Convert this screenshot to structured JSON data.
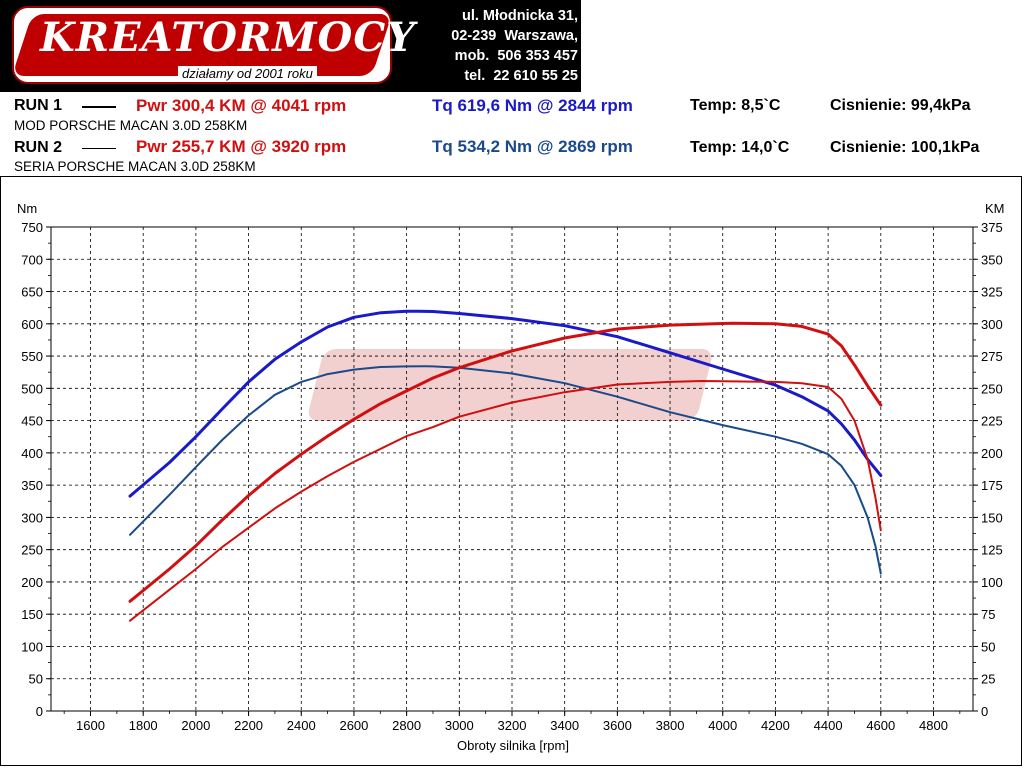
{
  "header": {
    "logo_text": "KREATORMOCY",
    "logo_tagline": "działamy od 2001 roku",
    "address": [
      "ul. Młodnicka 31,",
      "02-239  Warszawa,",
      "mob.  506 353 457",
      "tel.  22 610 55 25"
    ]
  },
  "runs": [
    {
      "label": "RUN 1",
      "pwr": "Pwr  300,4 KM @ 4041 rpm",
      "tq": "Tq 619,6 Nm @ 2844 rpm",
      "temp": "Temp: 8,5`C",
      "pressure": "Cisnienie: 99,4kPa",
      "desc": "MOD PORSCHE MACAN 3.0D 258KM",
      "pwr_color": "#d01010",
      "tq_color": "#1a1ac8"
    },
    {
      "label": "RUN 2",
      "pwr": "Pwr  255,7 KM @ 3920 rpm",
      "tq": "Tq 534,2 Nm @ 2869 rpm",
      "temp": "Temp: 14,0`C",
      "pressure": "Cisnienie: 100,1kPa",
      "desc": "SERIA PORSCHE MACAN 3.0D 258KM",
      "pwr_color": "#d01010",
      "tq_color": "#1a4a8a"
    }
  ],
  "chart_data": {
    "type": "line",
    "xlabel": "Obroty silnika [rpm]",
    "ylabel_left": "Nm",
    "ylabel_right": "KM",
    "xlim": [
      1450,
      4950
    ],
    "xticks": [
      1600,
      1800,
      2000,
      2200,
      2400,
      2600,
      2800,
      3000,
      3200,
      3400,
      3600,
      3800,
      4000,
      4200,
      4400,
      4600,
      4800
    ],
    "ylim_left": [
      0,
      750
    ],
    "yticks_left": [
      0,
      50,
      100,
      150,
      200,
      250,
      300,
      350,
      400,
      450,
      500,
      550,
      600,
      650,
      700,
      750
    ],
    "ylim_right": [
      0,
      375
    ],
    "yticks_right": [
      0,
      25,
      50,
      75,
      100,
      125,
      150,
      175,
      200,
      225,
      250,
      275,
      300,
      325,
      350,
      375
    ],
    "grid": true,
    "series": [
      {
        "axis": "left",
        "color": "#1a1ac8",
        "width": 3,
        "x": [
          1750,
          1900,
          2000,
          2100,
          2200,
          2300,
          2400,
          2500,
          2600,
          2700,
          2800,
          2844,
          2900,
          3000,
          3200,
          3400,
          3600,
          3800,
          4000,
          4200,
          4300,
          4400,
          4450,
          4500,
          4550,
          4600
        ],
        "y": [
          333,
          385,
          425,
          468,
          510,
          545,
          572,
          595,
          610,
          617,
          619.6,
          619.6,
          619,
          616,
          608,
          597,
          580,
          555,
          530,
          505,
          487,
          465,
          445,
          420,
          390,
          365
        ]
      },
      {
        "axis": "left",
        "color": "#1a4a8a",
        "width": 2,
        "x": [
          1750,
          1900,
          2000,
          2100,
          2200,
          2300,
          2400,
          2500,
          2600,
          2700,
          2800,
          2869,
          2900,
          3000,
          3200,
          3400,
          3600,
          3800,
          4000,
          4200,
          4300,
          4400,
          4450,
          4500,
          4550,
          4580,
          4600
        ],
        "y": [
          273,
          335,
          378,
          420,
          458,
          490,
          510,
          522,
          529,
          533,
          534,
          534.2,
          534,
          532,
          523,
          508,
          487,
          463,
          443,
          425,
          414,
          398,
          380,
          350,
          300,
          255,
          213
        ]
      },
      {
        "axis": "right",
        "color": "#d01010",
        "width": 3,
        "x": [
          1750,
          1900,
          2000,
          2100,
          2200,
          2300,
          2400,
          2500,
          2600,
          2700,
          2800,
          2900,
          3000,
          3200,
          3400,
          3600,
          3800,
          4000,
          4041,
          4200,
          4300,
          4400,
          4450,
          4500,
          4550,
          4600
        ],
        "y": [
          85,
          110,
          128,
          148,
          167,
          184,
          199,
          213,
          226,
          238,
          248,
          258,
          266,
          279,
          289,
          296,
          299,
          300.2,
          300.4,
          300,
          298,
          292,
          283,
          268,
          252,
          237
        ]
      },
      {
        "axis": "right",
        "color": "#d01010",
        "width": 2,
        "x": [
          1750,
          1900,
          2000,
          2100,
          2200,
          2300,
          2400,
          2500,
          2600,
          2700,
          2800,
          2900,
          3000,
          3200,
          3400,
          3600,
          3800,
          3920,
          4000,
          4200,
          4300,
          4400,
          4450,
          4500,
          4550,
          4580,
          4600
        ],
        "y": [
          70,
          94,
          110,
          127,
          142,
          157,
          170,
          182,
          193,
          203,
          213,
          220,
          228,
          239,
          247,
          253,
          255,
          255.7,
          255.5,
          255,
          254,
          251,
          242,
          225,
          195,
          165,
          140
        ]
      }
    ]
  }
}
